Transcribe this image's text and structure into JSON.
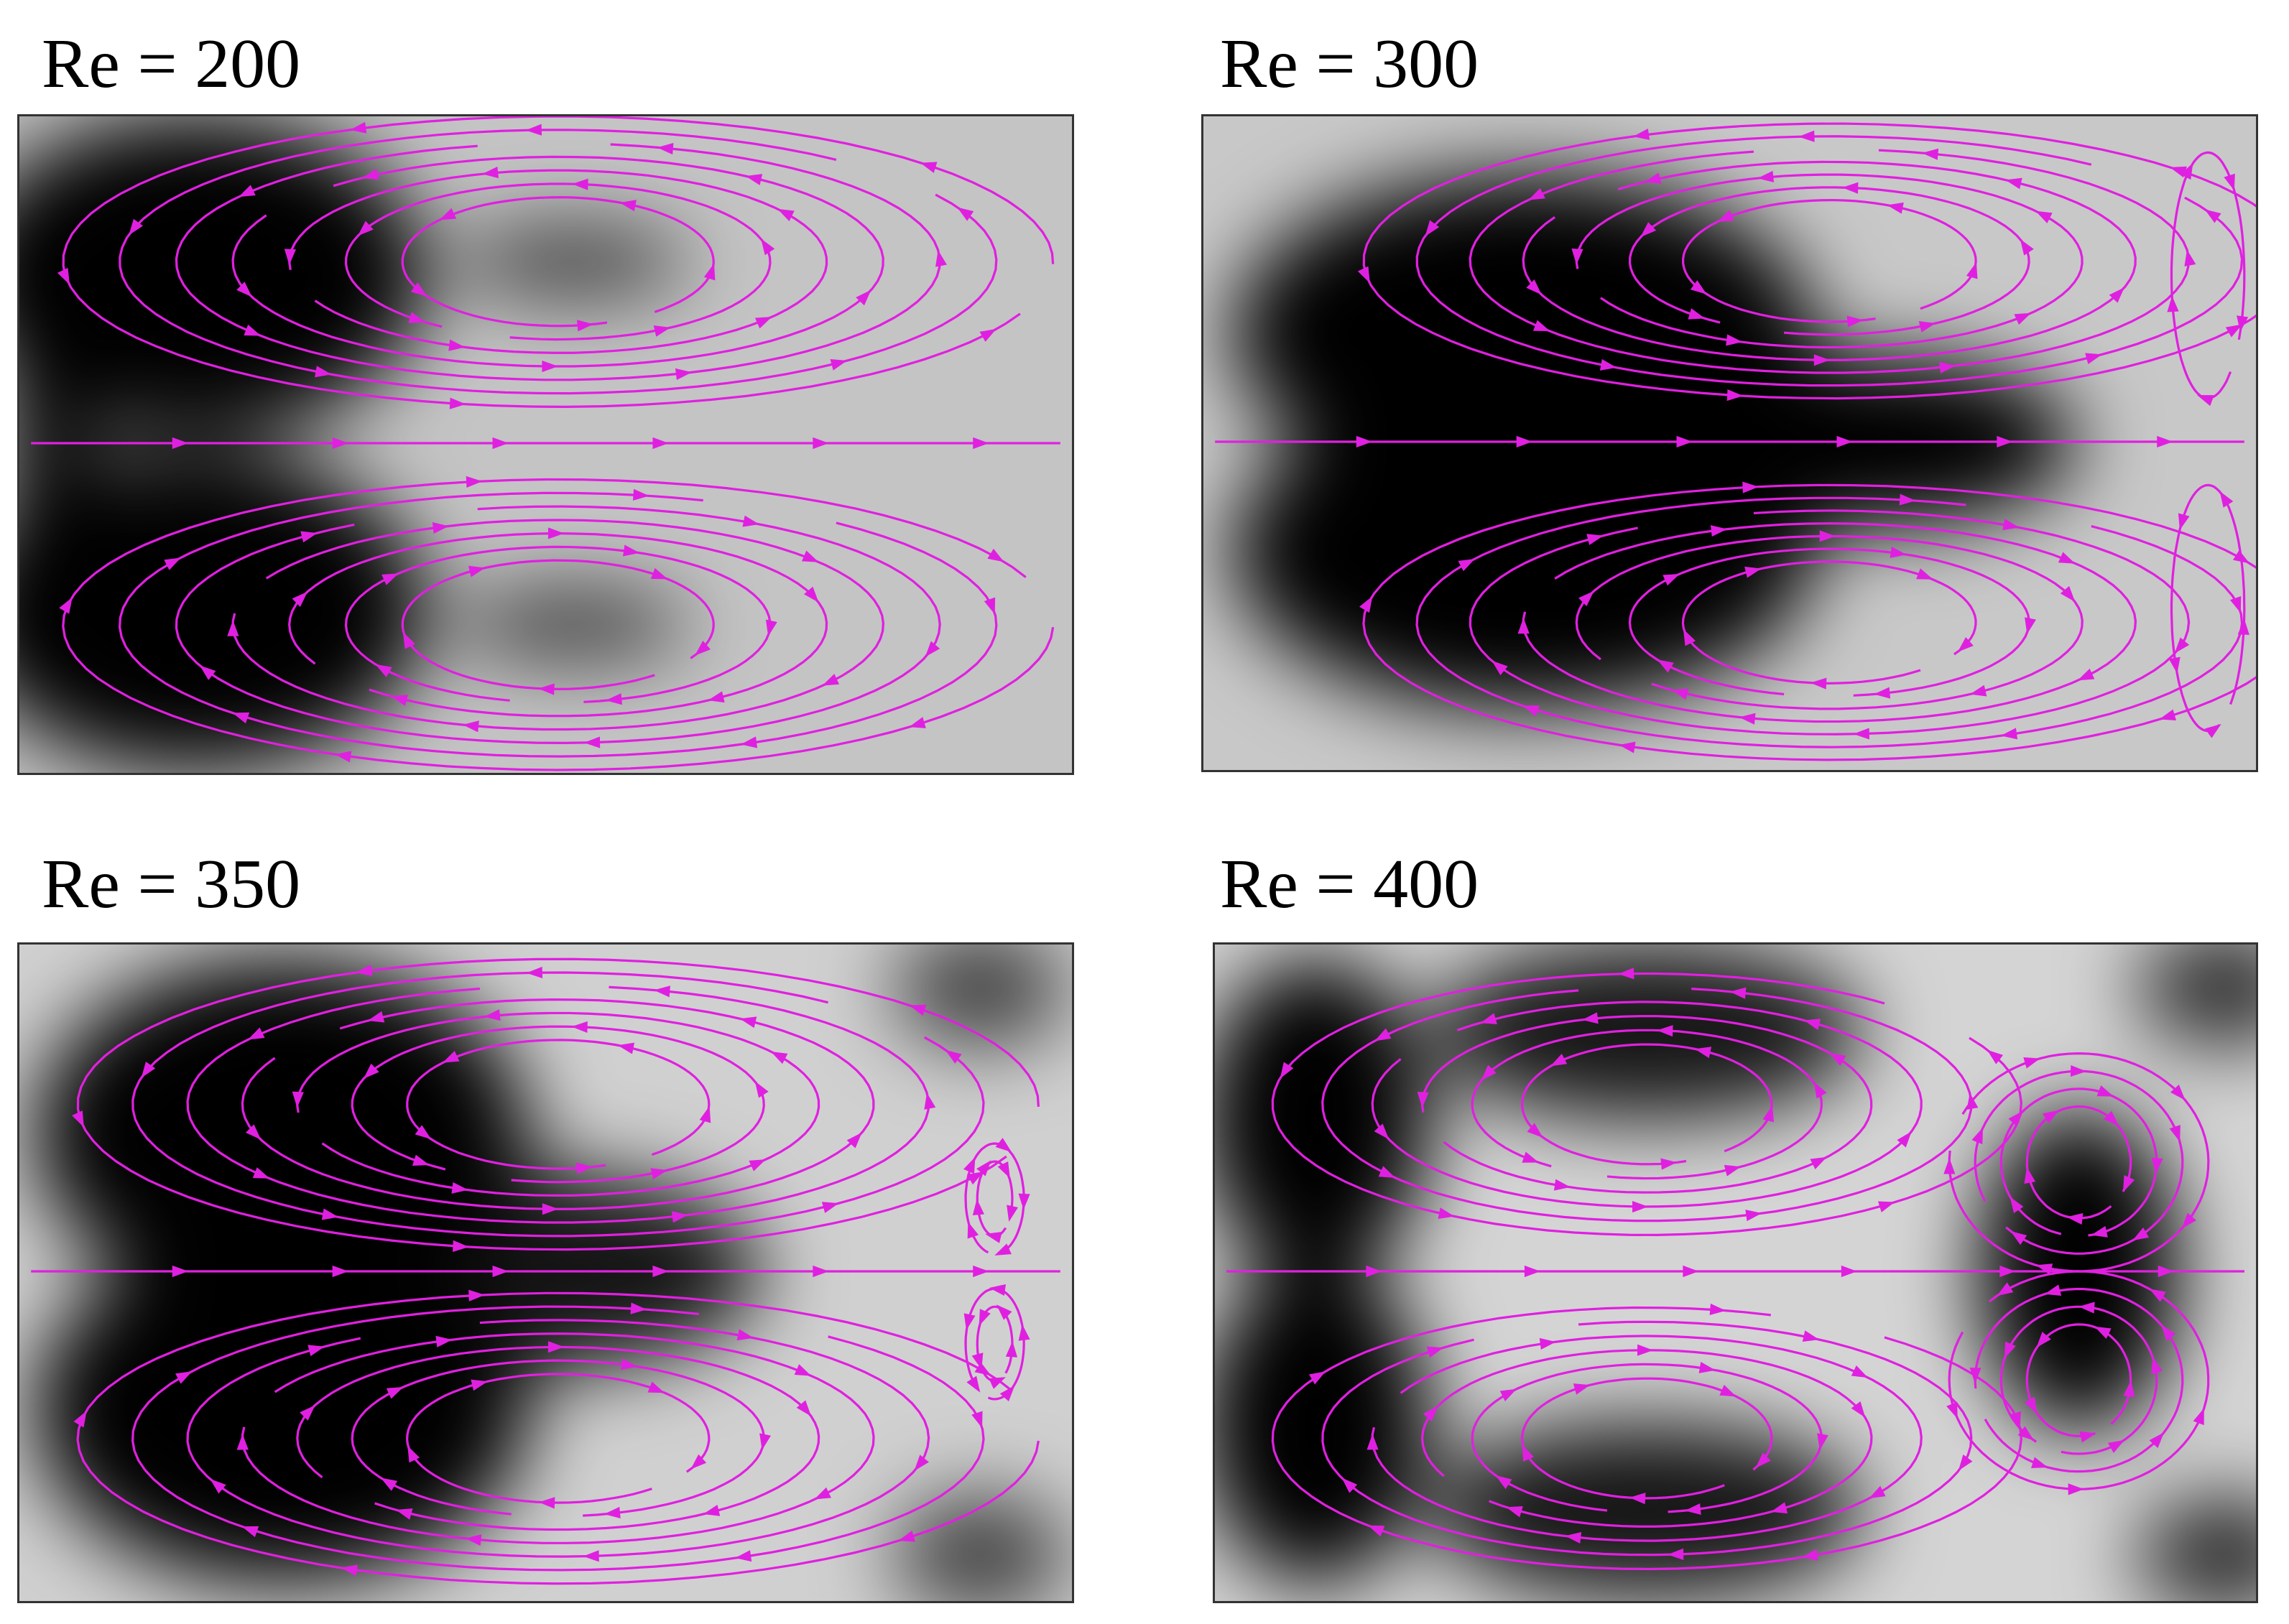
{
  "panels": [
    {
      "title": "Re = 200"
    },
    {
      "title": "Re = 300"
    },
    {
      "title": "Re = 350"
    },
    {
      "title": "Re = 400"
    }
  ]
}
